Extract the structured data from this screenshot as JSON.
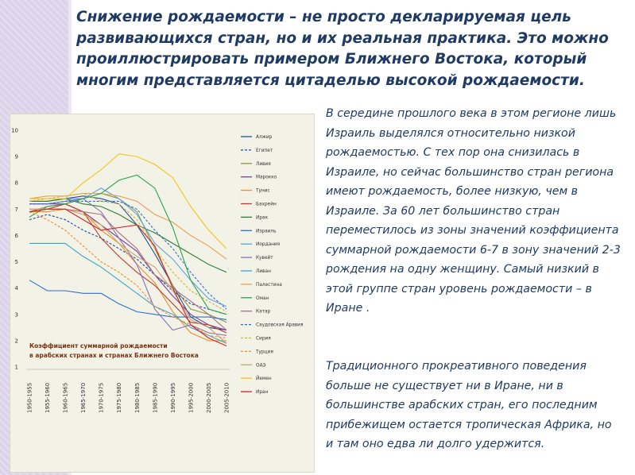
{
  "slide": {
    "title": "Снижение рождаемости – не просто декларируемая цель развивающихся стран, но и их реальная практика. Это можно проиллюстрировать примером Ближнего Востока, который многим представляется цитаделью высокой рождаемости.",
    "paragraph1": "В середине прошлого века в этом регионе лишь Израиль выделялся относительно низкой рождаемостью. С тех пор она снизилась в Израиле, но сейчас большинство стран региона имеют рождаемость, более низкую, чем в Израиле. За 60 лет большинство стран переместилось из зоны значений коэффициента суммарной рождаемости 6-7 в зону значений 2-3 рождения на одну женщину. Самый низкий в этой группе стран уровень рождаемости – в Иране .",
    "paragraph2": "Традиционного прокреативного поведения больше не существует ни в Иране, ни в большинстве арабских стран, его последним прибежищем остается тропическая Африка, но и там оно едва ли долго удержится."
  },
  "colors": {
    "title_text": "#1f3b63",
    "body_text": "#1f3b63",
    "sidebar": "#dcd3ea",
    "chart_background": "#f2f2e6",
    "overlay_title": "#7a3310"
  },
  "chart_data": {
    "type": "line",
    "title": "Коэффициент суммарной рождаемости в арабских странах и странах Ближнего Востока",
    "xlabel": "",
    "ylabel": "",
    "x": [
      "1950-1955",
      "1955-1960",
      "1960-1965",
      "1965-1970",
      "1970-1975",
      "1975-1980",
      "1980-1985",
      "1985-1990",
      "1990-1995",
      "1995-2000",
      "2000-2005",
      "2005-2010"
    ],
    "yticks": [
      "1",
      "2",
      "3",
      "4",
      "5",
      "6",
      "7",
      "8",
      "9",
      "10"
    ],
    "ylim": [
      1,
      10
    ],
    "grid": false,
    "legend_position": "right",
    "series": [
      {
        "name": "Алжир",
        "color": "#1f4e9b",
        "dash": "",
        "values": [
          7.3,
          7.3,
          7.4,
          7.5,
          7.4,
          7.2,
          6.4,
          5.3,
          4.1,
          2.9,
          2.5,
          2.4
        ]
      },
      {
        "name": "Египет",
        "color": "#1f4e9b",
        "dash": "3,2",
        "values": [
          6.6,
          6.8,
          6.6,
          6.2,
          5.9,
          5.5,
          5.1,
          4.5,
          3.9,
          3.4,
          3.2,
          3.0
        ]
      },
      {
        "name": "Ливия",
        "color": "#8c9a3c",
        "dash": "",
        "values": [
          6.9,
          7.1,
          7.2,
          7.4,
          7.6,
          7.4,
          6.9,
          5.5,
          4.1,
          3.2,
          3.0,
          2.7
        ]
      },
      {
        "name": "Марокко",
        "color": "#7b3f98",
        "dash": "",
        "values": [
          7.2,
          7.2,
          7.2,
          6.9,
          6.4,
          5.9,
          5.4,
          4.5,
          3.7,
          3.0,
          2.6,
          2.4
        ]
      },
      {
        "name": "Тунис",
        "color": "#f28c28",
        "dash": "",
        "values": [
          6.9,
          6.9,
          7.0,
          6.9,
          6.2,
          5.7,
          4.9,
          4.2,
          3.1,
          2.3,
          2.0,
          2.0
        ]
      },
      {
        "name": "Бахрейн",
        "color": "#c0392b",
        "dash": "",
        "values": [
          6.9,
          7.0,
          7.2,
          6.9,
          5.9,
          5.2,
          4.6,
          4.1,
          3.4,
          2.7,
          2.6,
          2.3
        ]
      },
      {
        "name": "Ирак",
        "color": "#2e7d32",
        "dash": "",
        "values": [
          7.3,
          7.3,
          7.4,
          7.2,
          7.1,
          6.8,
          6.4,
          6.1,
          5.7,
          5.3,
          4.9,
          4.6
        ]
      },
      {
        "name": "Израиль",
        "color": "#2a6fd6",
        "dash": "",
        "values": [
          4.3,
          3.9,
          3.9,
          3.8,
          3.8,
          3.4,
          3.1,
          3.0,
          2.9,
          2.9,
          2.9,
          2.8
        ]
      },
      {
        "name": "Иордания",
        "color": "#5fa0e6",
        "dash": "",
        "values": [
          7.4,
          7.4,
          7.4,
          7.4,
          7.8,
          7.4,
          6.8,
          5.7,
          5.1,
          4.3,
          3.6,
          3.3
        ]
      },
      {
        "name": "Кувейт",
        "color": "#8b6fb5",
        "dash": "",
        "values": [
          7.2,
          7.2,
          7.3,
          7.4,
          6.9,
          5.9,
          4.9,
          3.2,
          2.4,
          2.6,
          2.3,
          2.2
        ]
      },
      {
        "name": "Ливан",
        "color": "#3aa7c8",
        "dash": "",
        "values": [
          5.7,
          5.7,
          5.7,
          5.2,
          4.8,
          4.3,
          3.8,
          3.3,
          3.0,
          2.5,
          2.2,
          1.9
        ]
      },
      {
        "name": "Палестина",
        "color": "#e5a05a",
        "dash": "",
        "values": [
          7.4,
          7.5,
          7.5,
          7.6,
          7.6,
          7.5,
          7.3,
          6.8,
          6.5,
          6.0,
          5.6,
          5.1
        ]
      },
      {
        "name": "Оман",
        "color": "#27a348",
        "dash": "",
        "values": [
          6.7,
          7.1,
          7.2,
          7.4,
          7.6,
          8.1,
          8.3,
          7.8,
          6.3,
          4.3,
          3.2,
          3.0
        ]
      },
      {
        "name": "Катар",
        "color": "#ad6f8a",
        "dash": "",
        "values": [
          7.0,
          7.0,
          7.0,
          6.9,
          6.8,
          6.1,
          5.5,
          4.5,
          4.0,
          3.5,
          3.0,
          2.4
        ]
      },
      {
        "name": "Саудовская Аравия",
        "color": "#2a6fd6",
        "dash": "3,2",
        "values": [
          7.2,
          7.2,
          7.3,
          7.3,
          7.3,
          7.3,
          7.0,
          6.2,
          5.5,
          4.6,
          3.8,
          3.2
        ]
      },
      {
        "name": "Сирия",
        "color": "#d4b43a",
        "dash": "3,2",
        "values": [
          7.3,
          7.4,
          7.5,
          7.6,
          7.3,
          7.2,
          6.6,
          5.5,
          4.6,
          3.9,
          3.5,
          3.1
        ]
      },
      {
        "name": "Турция",
        "color": "#f28c28",
        "dash": "3,2",
        "values": [
          6.9,
          6.6,
          6.2,
          5.6,
          5.0,
          4.6,
          4.1,
          3.3,
          2.9,
          2.6,
          2.2,
          2.1
        ]
      },
      {
        "name": "ОАЭ",
        "color": "#c8a56f",
        "dash": "",
        "values": [
          7.0,
          7.0,
          7.0,
          6.8,
          6.4,
          5.7,
          5.2,
          4.8,
          3.9,
          2.8,
          2.5,
          1.9
        ]
      },
      {
        "name": "Йемен",
        "color": "#f5c518",
        "dash": "",
        "values": [
          7.4,
          7.4,
          7.4,
          8.0,
          8.5,
          9.1,
          9.0,
          8.7,
          8.2,
          7.1,
          6.2,
          5.5
        ]
      },
      {
        "name": "Иран",
        "color": "#d62020",
        "dash": "",
        "values": [
          6.9,
          7.0,
          7.0,
          6.6,
          6.2,
          6.3,
          6.4,
          5.6,
          4.0,
          2.6,
          2.1,
          1.8
        ]
      }
    ]
  }
}
